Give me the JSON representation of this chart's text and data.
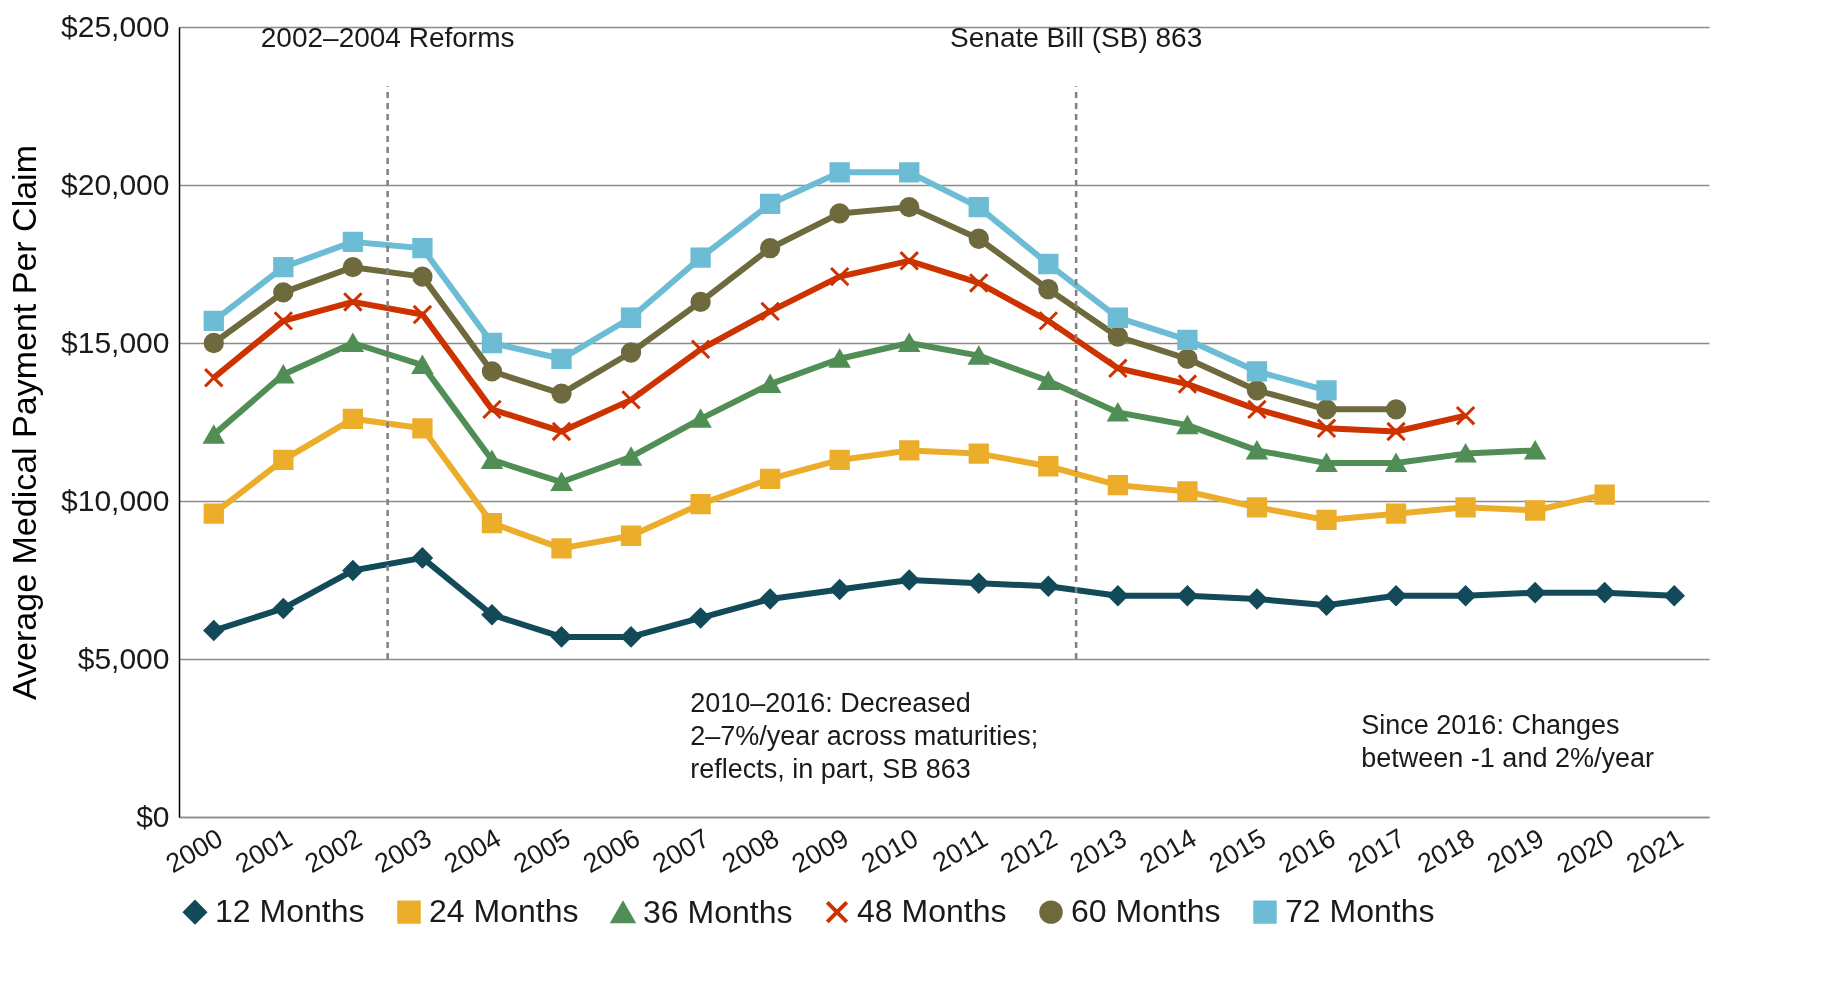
{
  "chart_data": {
    "type": "line",
    "ylabel": "Average Medical Payment Per Claim",
    "x": [
      2000,
      2001,
      2002,
      2003,
      2004,
      2005,
      2006,
      2007,
      2008,
      2009,
      2010,
      2011,
      2012,
      2013,
      2014,
      2015,
      2016,
      2017,
      2018,
      2019,
      2020,
      2021
    ],
    "xlim": [
      1999.5,
      2021.5
    ],
    "xticks": [
      2000,
      2001,
      2002,
      2003,
      2004,
      2005,
      2006,
      2007,
      2008,
      2009,
      2010,
      2011,
      2012,
      2013,
      2014,
      2015,
      2016,
      2017,
      2018,
      2019,
      2020,
      2021
    ],
    "ylim": [
      0,
      25000
    ],
    "yticks": [
      {
        "value": 0,
        "label": "$0"
      },
      {
        "value": 5000,
        "label": "$5,000"
      },
      {
        "value": 10000,
        "label": "$10,000"
      },
      {
        "value": 15000,
        "label": "$15,000"
      },
      {
        "value": 20000,
        "label": "$20,000"
      },
      {
        "value": 25000,
        "label": "$25,000"
      }
    ],
    "grid": "y",
    "legend": "bottom",
    "series": [
      {
        "name": "12 Months",
        "color": "#134a5a",
        "marker": "diamond",
        "values": [
          5900,
          6600,
          7800,
          8200,
          6400,
          5700,
          5700,
          6300,
          6900,
          7200,
          7500,
          7400,
          7300,
          7000,
          7000,
          6900,
          6700,
          7000,
          7000,
          7100,
          7100,
          7000
        ]
      },
      {
        "name": "24 Months",
        "color": "#ecad2a",
        "marker": "square",
        "values": [
          9600,
          11300,
          12600,
          12300,
          9300,
          8500,
          8900,
          9900,
          10700,
          11300,
          11600,
          11500,
          11100,
          10500,
          10300,
          9800,
          9400,
          9600,
          9800,
          9700,
          10200,
          null
        ]
      },
      {
        "name": "36 Months",
        "color": "#518e55",
        "marker": "triangle",
        "values": [
          12100,
          14000,
          15000,
          14300,
          11300,
          10600,
          11400,
          12600,
          13700,
          14500,
          15000,
          14600,
          13800,
          12800,
          12400,
          11600,
          11200,
          11200,
          11500,
          11600,
          null,
          null
        ]
      },
      {
        "name": "48 Months",
        "color": "#cc3300",
        "marker": "cross",
        "values": [
          13900,
          15700,
          16300,
          15900,
          12900,
          12200,
          13200,
          14800,
          16000,
          17100,
          17600,
          16900,
          15700,
          14200,
          13700,
          12900,
          12300,
          12200,
          12700,
          null,
          null,
          null
        ]
      },
      {
        "name": "60 Months",
        "color": "#6e6a3e",
        "marker": "circle",
        "values": [
          15000,
          16600,
          17400,
          17100,
          14100,
          13400,
          14700,
          16300,
          18000,
          19100,
          19300,
          18300,
          16700,
          15200,
          14500,
          13500,
          12900,
          12900,
          null,
          null,
          null,
          null
        ]
      },
      {
        "name": "72 Months",
        "color": "#6bbcd4",
        "marker": "square",
        "values": [
          15700,
          17400,
          18200,
          18000,
          15000,
          14500,
          15800,
          17700,
          19400,
          20400,
          20400,
          19300,
          17500,
          15800,
          15100,
          14100,
          13500,
          null,
          null,
          null,
          null,
          null
        ]
      }
    ],
    "ref_lines": [
      {
        "axis": "x",
        "value": 2002.5,
        "label": "2002–2004 Reforms",
        "color": "#808080",
        "line_style": "dashed"
      },
      {
        "axis": "x",
        "value": 2012.4,
        "label": "Senate Bill (SB) 863",
        "color": "#808080",
        "line_style": "dashed"
      }
    ],
    "annotations": [
      "2010–2016: Decreased 2–7%/year across maturities; reflects, in part, SB 863",
      "Since 2016: Changes between -1 and 2%/year"
    ]
  }
}
